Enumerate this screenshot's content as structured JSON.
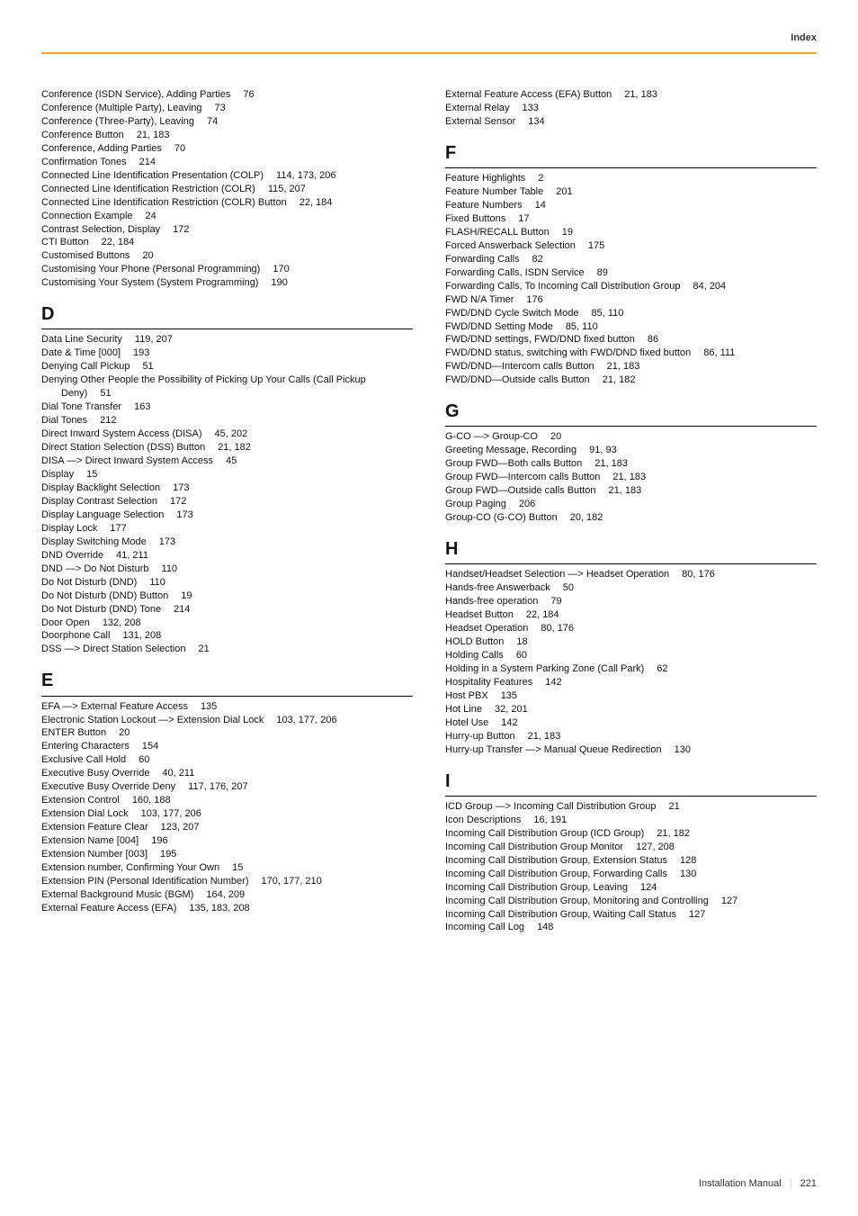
{
  "header_label": "Index",
  "footer": {
    "manual_label": "Installation Manual",
    "page_number": "221"
  },
  "colors": {
    "header_rule": "#f5a623",
    "text": "#111111",
    "footer_text": "#333333",
    "background": "#ffffff",
    "separator": "#cccccc"
  },
  "typography": {
    "body_fontsize_pt": 8.5,
    "heading_fontsize_pt": 15,
    "font_family": "Arial, Helvetica, sans-serif",
    "line_height": 1.36
  },
  "columns": {
    "left": [
      {
        "entries": [
          {
            "label": "Conference (ISDN Service), Adding Parties",
            "pages": "76"
          },
          {
            "label": "Conference (Multiple Party), Leaving",
            "pages": "73"
          },
          {
            "label": "Conference (Three-Party), Leaving",
            "pages": "74"
          },
          {
            "label": "Conference Button",
            "pages": "21, 183"
          },
          {
            "label": "Conference, Adding Parties",
            "pages": "70"
          },
          {
            "label": "Confirmation Tones",
            "pages": "214"
          },
          {
            "label": "Connected Line Identification Presentation (COLP)",
            "pages": "114, 173, 206"
          },
          {
            "label": "Connected Line Identification Restriction (COLR)",
            "pages": "115, 207"
          },
          {
            "label": "Connected Line Identification Restriction (COLR) Button",
            "pages": "22, 184"
          },
          {
            "label": "Connection Example",
            "pages": "24"
          },
          {
            "label": "Contrast Selection, Display",
            "pages": "172"
          },
          {
            "label": "CTI Button",
            "pages": "22, 184"
          },
          {
            "label": "Customised Buttons",
            "pages": "20"
          },
          {
            "label": "Customising Your Phone (Personal Programming)",
            "pages": "170"
          },
          {
            "label": "Customising Your System (System Programming)",
            "pages": "190"
          }
        ]
      },
      {
        "letter": "D",
        "entries": [
          {
            "label": "Data Line Security",
            "pages": "119, 207"
          },
          {
            "label": "Date & Time [000]",
            "pages": "193"
          },
          {
            "label": "Denying Call Pickup",
            "pages": "51"
          },
          {
            "label": "Denying Other People the Possibility of Picking Up Your Calls (Call Pickup",
            "pages": ""
          },
          {
            "label": "Deny)",
            "pages": "51",
            "indent": true
          },
          {
            "label": "Dial Tone Transfer",
            "pages": "163"
          },
          {
            "label": "Dial Tones",
            "pages": "212"
          },
          {
            "label": "Direct Inward System Access (DISA)",
            "pages": "45, 202"
          },
          {
            "label": "Direct Station Selection (DSS) Button",
            "pages": "21, 182"
          },
          {
            "label": "DISA —> Direct Inward System Access",
            "pages": "45"
          },
          {
            "label": "Display",
            "pages": "15"
          },
          {
            "label": "Display Backlight Selection",
            "pages": "173"
          },
          {
            "label": "Display Contrast Selection",
            "pages": "172"
          },
          {
            "label": "Display Language Selection",
            "pages": "173"
          },
          {
            "label": "Display Lock",
            "pages": "177"
          },
          {
            "label": "Display Switching Mode",
            "pages": "173"
          },
          {
            "label": "DND Override",
            "pages": "41, 211"
          },
          {
            "label": "DND —> Do Not Disturb",
            "pages": "110"
          },
          {
            "label": "Do Not Disturb (DND)",
            "pages": "110"
          },
          {
            "label": "Do Not Disturb (DND) Button",
            "pages": "19"
          },
          {
            "label": "Do Not Disturb (DND) Tone",
            "pages": "214"
          },
          {
            "label": "Door Open",
            "pages": "132, 208"
          },
          {
            "label": "Doorphone Call",
            "pages": "131, 208"
          },
          {
            "label": "DSS —> Direct Station Selection",
            "pages": "21"
          }
        ]
      },
      {
        "letter": "E",
        "entries": [
          {
            "label": "EFA —> External Feature Access",
            "pages": "135"
          },
          {
            "label": "Electronic Station Lockout —> Extension Dial Lock",
            "pages": "103, 177, 206"
          },
          {
            "label": "ENTER Button",
            "pages": "20"
          },
          {
            "label": "Entering Characters",
            "pages": "154"
          },
          {
            "label": "Exclusive Call Hold",
            "pages": "60"
          },
          {
            "label": "Executive Busy Override",
            "pages": "40, 211"
          },
          {
            "label": "Executive Busy Override Deny",
            "pages": "117, 176, 207"
          },
          {
            "label": "Extension Control",
            "pages": "160, 188"
          },
          {
            "label": "Extension Dial Lock",
            "pages": "103, 177, 206"
          },
          {
            "label": "Extension Feature Clear",
            "pages": "123, 207"
          },
          {
            "label": "Extension Name [004]",
            "pages": "196"
          },
          {
            "label": "Extension Number [003]",
            "pages": "195"
          },
          {
            "label": "Extension number, Confirming Your Own",
            "pages": "15"
          },
          {
            "label": "Extension PIN (Personal Identification Number)",
            "pages": "170, 177, 210"
          },
          {
            "label": "External Background Music (BGM)",
            "pages": "164, 209"
          },
          {
            "label": "External Feature Access (EFA)",
            "pages": "135, 183, 208"
          }
        ]
      }
    ],
    "right": [
      {
        "entries": [
          {
            "label": "External Feature Access (EFA) Button",
            "pages": "21, 183"
          },
          {
            "label": "External Relay",
            "pages": "133"
          },
          {
            "label": "External Sensor",
            "pages": "134"
          }
        ]
      },
      {
        "letter": "F",
        "entries": [
          {
            "label": "Feature Highlights",
            "pages": "2"
          },
          {
            "label": "Feature Number Table",
            "pages": "201"
          },
          {
            "label": "Feature Numbers",
            "pages": "14"
          },
          {
            "label": "Fixed Buttons",
            "pages": "17"
          },
          {
            "label": "FLASH/RECALL Button",
            "pages": "19"
          },
          {
            "label": "Forced Answerback Selection",
            "pages": "175"
          },
          {
            "label": "Forwarding Calls",
            "pages": "82"
          },
          {
            "label": "Forwarding Calls, ISDN Service",
            "pages": "89"
          },
          {
            "label": "Forwarding Calls, To Incoming Call Distribution Group",
            "pages": "84, 204"
          },
          {
            "label": "FWD N/A Timer",
            "pages": "176"
          },
          {
            "label": "FWD/DND Cycle Switch Mode",
            "pages": "85, 110"
          },
          {
            "label": "FWD/DND Setting Mode",
            "pages": "85, 110"
          },
          {
            "label": "FWD/DND settings, FWD/DND fixed button",
            "pages": "86"
          },
          {
            "label": "FWD/DND status, switching with FWD/DND fixed button",
            "pages": "86, 111"
          },
          {
            "label": "FWD/DND—Intercom calls Button",
            "pages": "21, 183"
          },
          {
            "label": "FWD/DND—Outside calls Button",
            "pages": "21, 182"
          }
        ]
      },
      {
        "letter": "G",
        "entries": [
          {
            "label": "G-CO —> Group-CO",
            "pages": "20"
          },
          {
            "label": "Greeting Message, Recording",
            "pages": "91, 93"
          },
          {
            "label": "Group FWD—Both calls Button",
            "pages": "21, 183"
          },
          {
            "label": "Group FWD—Intercom calls Button",
            "pages": "21, 183"
          },
          {
            "label": "Group FWD—Outside calls Button",
            "pages": "21, 183"
          },
          {
            "label": "Group Paging",
            "pages": "206"
          },
          {
            "label": "Group-CO (G-CO) Button",
            "pages": "20, 182"
          }
        ]
      },
      {
        "letter": "H",
        "entries": [
          {
            "label": "Handset/Headset Selection —> Headset Operation",
            "pages": "80, 176"
          },
          {
            "label": "Hands-free Answerback",
            "pages": "50"
          },
          {
            "label": "Hands-free operation",
            "pages": "79"
          },
          {
            "label": "Headset Button",
            "pages": "22, 184"
          },
          {
            "label": "Headset Operation",
            "pages": "80, 176"
          },
          {
            "label": "HOLD Button",
            "pages": "18"
          },
          {
            "label": "Holding Calls",
            "pages": "60"
          },
          {
            "label": "Holding in a System Parking Zone (Call Park)",
            "pages": "62"
          },
          {
            "label": "Hospitality Features",
            "pages": "142"
          },
          {
            "label": "Host PBX",
            "pages": "135"
          },
          {
            "label": "Hot Line",
            "pages": "32, 201"
          },
          {
            "label": "Hotel Use",
            "pages": "142"
          },
          {
            "label": "Hurry-up Button",
            "pages": "21, 183"
          },
          {
            "label": "Hurry-up Transfer —> Manual Queue Redirection",
            "pages": "130"
          }
        ]
      },
      {
        "letter": "I",
        "entries": [
          {
            "label": "ICD Group —> Incoming Call Distribution Group",
            "pages": "21"
          },
          {
            "label": "Icon Descriptions",
            "pages": "16, 191"
          },
          {
            "label": "Incoming Call Distribution Group (ICD Group)",
            "pages": "21, 182"
          },
          {
            "label": "Incoming Call Distribution Group Monitor",
            "pages": "127, 208"
          },
          {
            "label": "Incoming Call Distribution Group, Extension Status",
            "pages": "128"
          },
          {
            "label": "Incoming Call Distribution Group, Forwarding Calls",
            "pages": "130"
          },
          {
            "label": "Incoming Call Distribution Group, Leaving",
            "pages": "124"
          },
          {
            "label": "Incoming Call Distribution Group, Monitoring and Controlling",
            "pages": "127"
          },
          {
            "label": "Incoming Call Distribution Group, Waiting Call Status",
            "pages": "127"
          },
          {
            "label": "Incoming Call Log",
            "pages": "148"
          }
        ]
      }
    ]
  }
}
